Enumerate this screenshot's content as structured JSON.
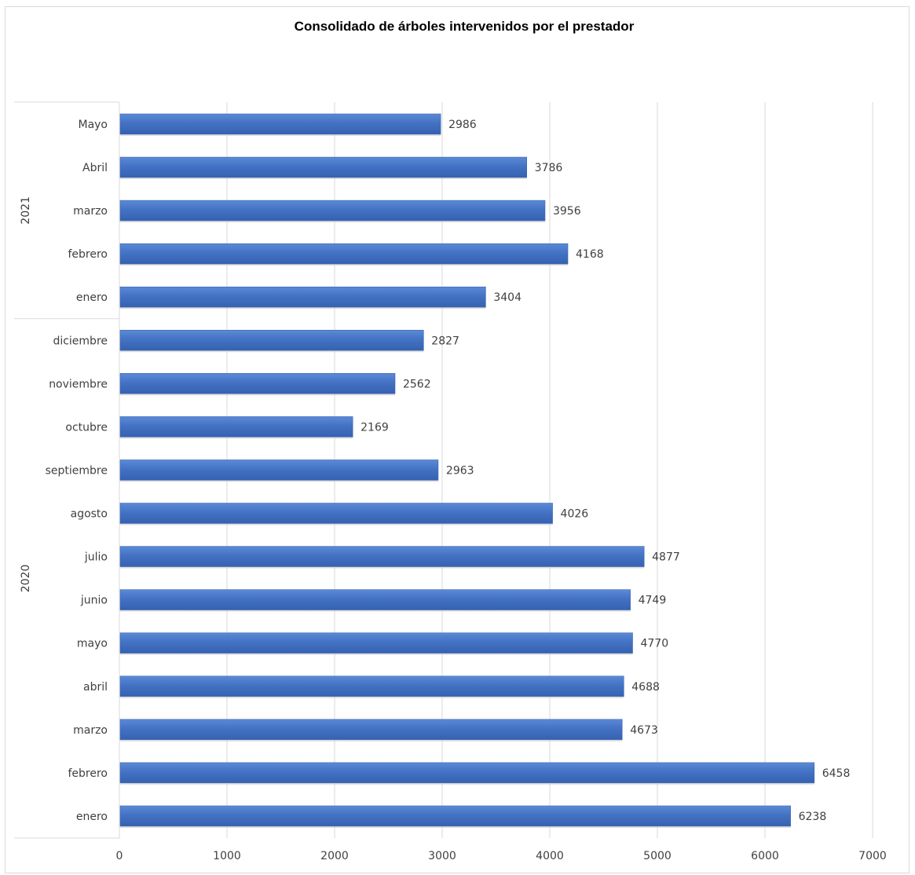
{
  "chart_data": {
    "type": "bar",
    "orientation": "horizontal",
    "title": "Consolidado de árboles intervenidos por el prestador",
    "xlabel": "",
    "ylabel": "",
    "xlim": [
      0,
      7000
    ],
    "xticks": [
      "0",
      "1000",
      "2000",
      "3000",
      "4000",
      "5000",
      "6000",
      "7000"
    ],
    "grid": "vertical",
    "legend": "none",
    "bar_color": "#4472C4",
    "groups": [
      {
        "name": "2021",
        "categories": [
          "Mayo",
          "Abril",
          "marzo",
          "febrero",
          "enero"
        ],
        "values": [
          2986,
          3786,
          3956,
          4168,
          3404
        ]
      },
      {
        "name": "2020",
        "categories": [
          "diciembre",
          "noviembre",
          "octubre",
          "septiembre",
          "agosto",
          "julio",
          "junio",
          "mayo",
          "abril",
          "marzo",
          "febrero",
          "enero"
        ],
        "values": [
          2827,
          2562,
          2169,
          2963,
          4026,
          4877,
          4749,
          4770,
          4688,
          4673,
          6458,
          6238
        ]
      }
    ]
  }
}
